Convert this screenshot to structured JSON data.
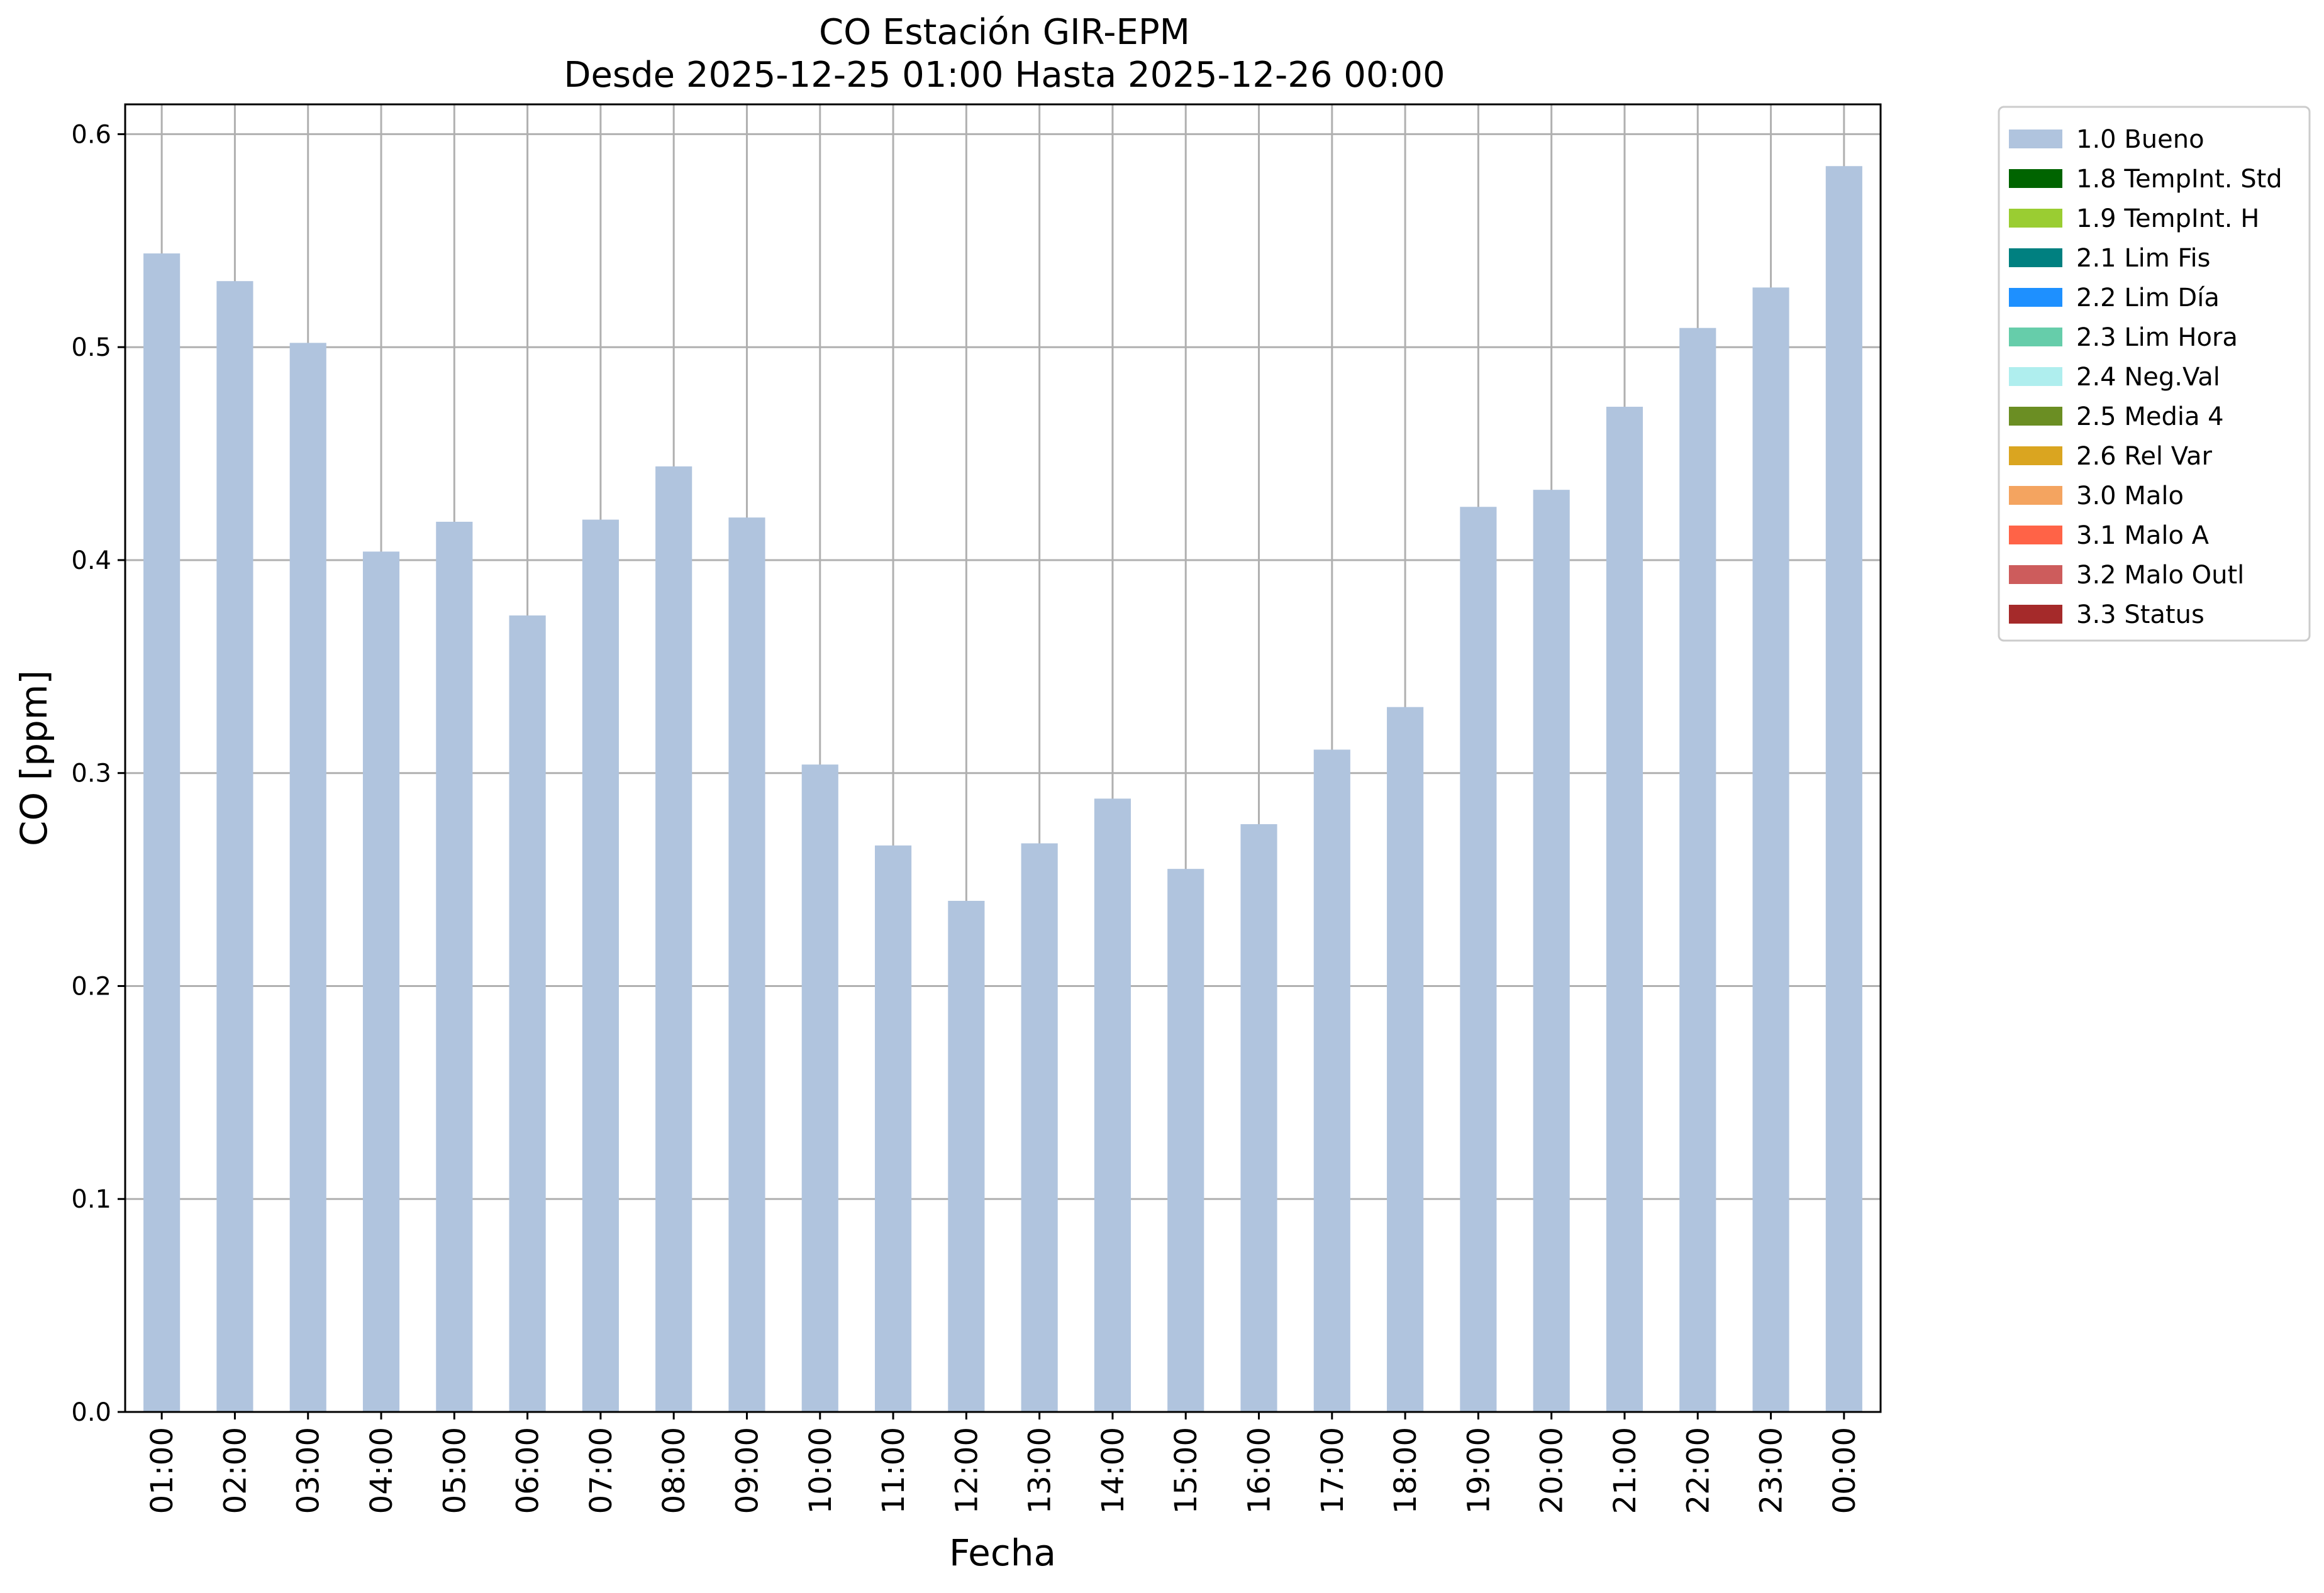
{
  "chart_data": {
    "type": "bar",
    "title": "CO Estación GIR-EPM",
    "subtitle": "Desde 2025-12-25 01:00 Hasta 2025-12-26 00:00",
    "xlabel": "Fecha",
    "ylabel": "CO [ppm]",
    "ylim": [
      0,
      0.614
    ],
    "yticks": [
      "0.0",
      "0.1",
      "0.2",
      "0.3",
      "0.4",
      "0.5",
      "0.6"
    ],
    "grid": true,
    "legend_position": "outside-right-top",
    "categories": [
      "01:00",
      "02:00",
      "03:00",
      "04:00",
      "05:00",
      "06:00",
      "07:00",
      "08:00",
      "09:00",
      "10:00",
      "11:00",
      "12:00",
      "13:00",
      "14:00",
      "15:00",
      "16:00",
      "17:00",
      "18:00",
      "19:00",
      "20:00",
      "21:00",
      "22:00",
      "23:00",
      "00:00"
    ],
    "series": [
      {
        "name": "1.0 Bueno",
        "color": "#b0c4de",
        "values": [
          0.544,
          0.531,
          0.502,
          0.404,
          0.418,
          0.374,
          0.419,
          0.444,
          0.42,
          0.304,
          0.266,
          0.24,
          0.267,
          0.288,
          0.255,
          0.276,
          0.311,
          0.331,
          0.425,
          0.433,
          0.472,
          0.509,
          0.528,
          0.585
        ]
      }
    ],
    "legend": [
      {
        "label": "1.0 Bueno",
        "color": "#b0c4de"
      },
      {
        "label": "1.8 TempInt. Std",
        "color": "#006400"
      },
      {
        "label": "1.9 TempInt. H",
        "color": "#9acd32"
      },
      {
        "label": "2.1 Lim Fis",
        "color": "#008080"
      },
      {
        "label": "2.2 Lim Día",
        "color": "#1e90ff"
      },
      {
        "label": "2.3 Lim Hora",
        "color": "#66cdaa"
      },
      {
        "label": "2.4 Neg.Val",
        "color": "#afeeee"
      },
      {
        "label": "2.5 Media 4",
        "color": "#6b8e23"
      },
      {
        "label": "2.6 Rel Var",
        "color": "#daa520"
      },
      {
        "label": "3.0 Malo",
        "color": "#f4a460"
      },
      {
        "label": "3.1 Malo A",
        "color": "#ff6347"
      },
      {
        "label": "3.2 Malo Outl",
        "color": "#cd5c5c"
      },
      {
        "label": "3.3 Status",
        "color": "#a52a2a"
      }
    ]
  }
}
